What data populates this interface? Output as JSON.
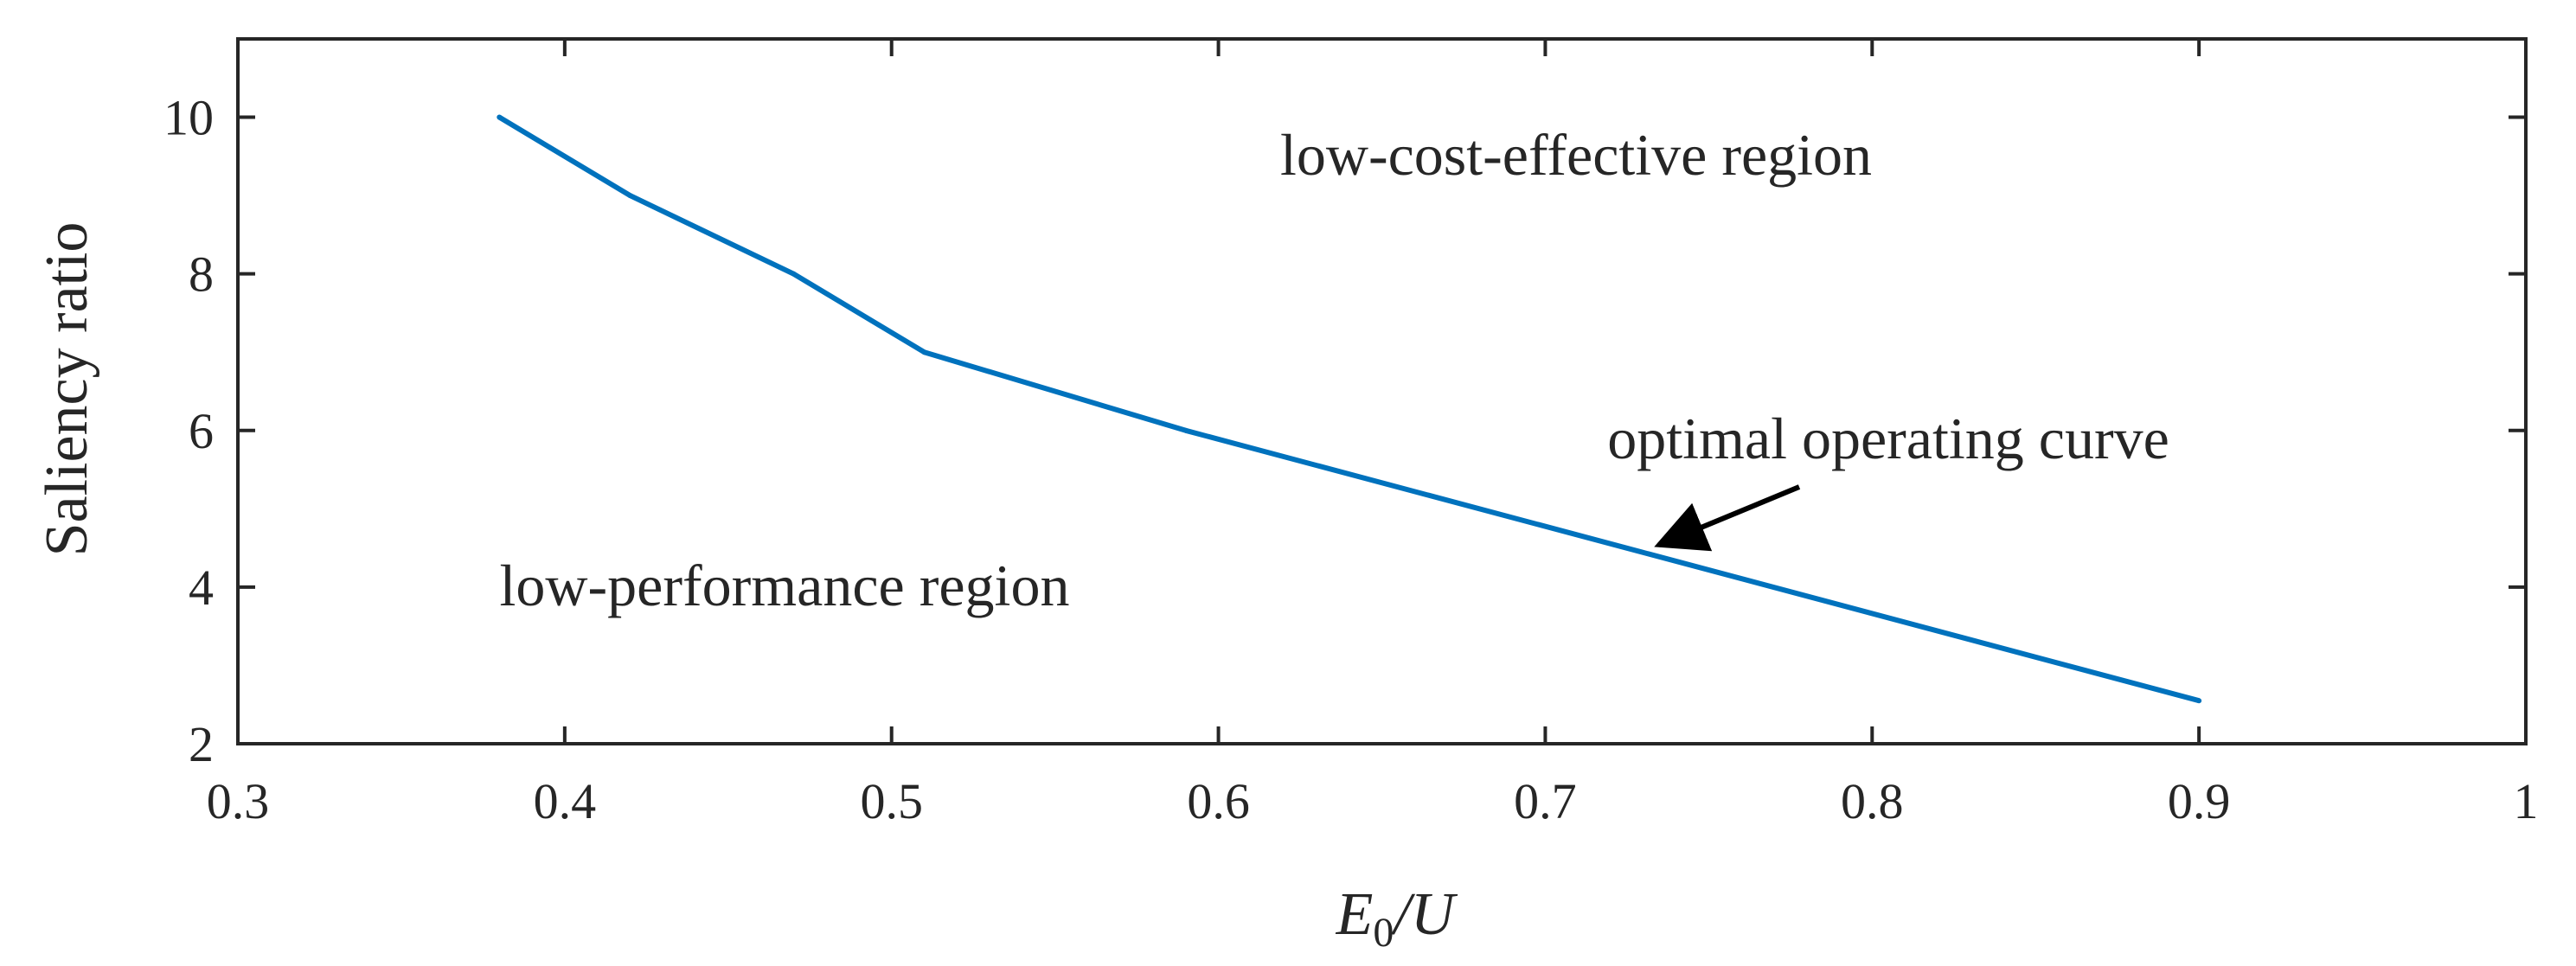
{
  "chart_data": {
    "type": "line",
    "title": "",
    "xlabel": {
      "var": "E",
      "sub": "0",
      "rest": "/U"
    },
    "ylabel": "Saliency ratio",
    "xlim": [
      0.3,
      1.0
    ],
    "ylim": [
      2,
      11
    ],
    "x_ticks": [
      0.3,
      0.4,
      0.5,
      0.6,
      0.7,
      0.8,
      0.9,
      1.0
    ],
    "x_tick_labels": [
      "0.3",
      "0.4",
      "0.5",
      "0.6",
      "0.7",
      "0.8",
      "0.9",
      "1"
    ],
    "y_ticks": [
      2,
      4,
      6,
      8,
      10
    ],
    "y_tick_labels": [
      "2",
      "4",
      "6",
      "8",
      "10"
    ],
    "grid": false,
    "series": [
      {
        "name": "optimal operating curve",
        "color": "#0072BD",
        "x": [
          0.38,
          0.42,
          0.47,
          0.51,
          0.59,
          0.9
        ],
        "y": [
          10,
          9,
          8,
          7,
          6,
          2.55
        ]
      }
    ],
    "annotations": {
      "upper_region": "low-cost-effective region",
      "lower_region": "low-performance region",
      "curve_label": "optimal operating curve",
      "arrow_target": {
        "x": 0.73,
        "y": 4.45
      }
    }
  }
}
